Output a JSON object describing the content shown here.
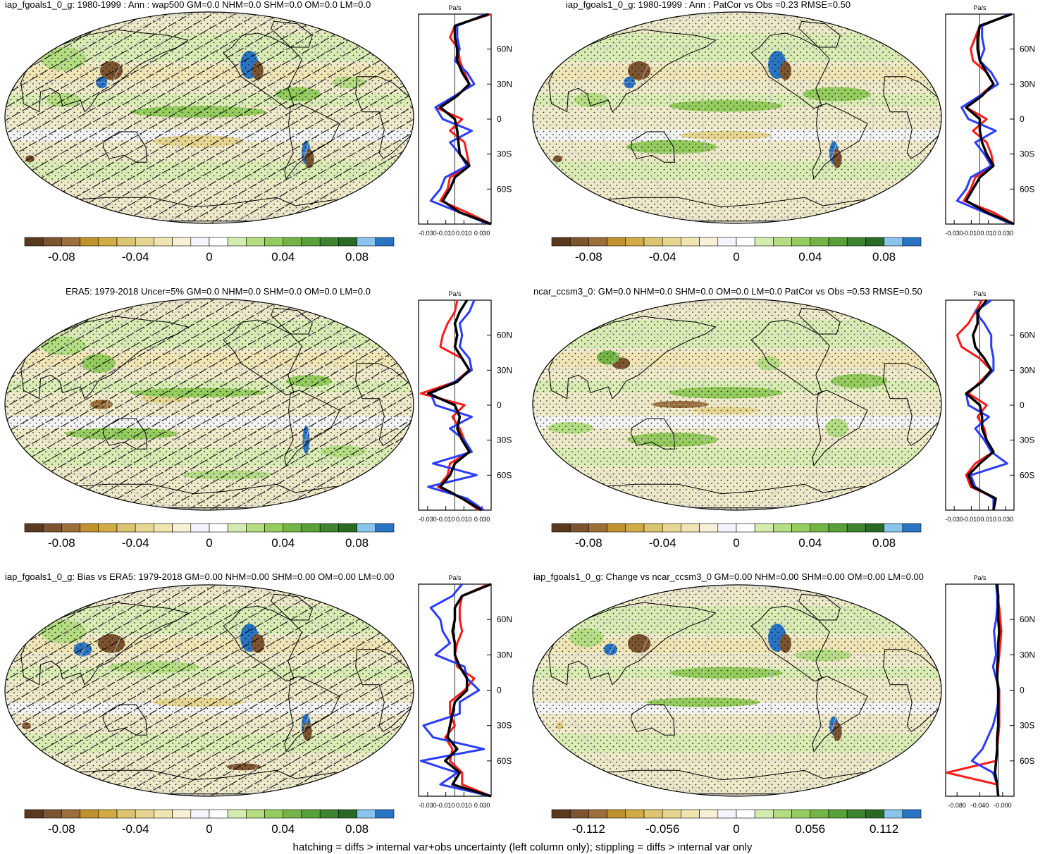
{
  "colors": {
    "palette": [
      "#5a3a1e",
      "#7d5430",
      "#9c6e3a",
      "#c0922e",
      "#d2ab45",
      "#dcc470",
      "#e7d691",
      "#efe4b2",
      "#f6f0d6",
      "#f4f4fc",
      "#ffffff",
      "#d5ecb0",
      "#b4dd82",
      "#94cc5e",
      "#74b446",
      "#58a038",
      "#3e8430",
      "#2a6a26",
      "#88c4ec",
      "#2a74c4"
    ],
    "ocean_tint": "#ffffff",
    "coast": "#000000",
    "zonal_model": "#2a3cff",
    "zonal_obs": "#ff1a1a",
    "zonal_mean": "#000000"
  },
  "footer": "hatching = diffs > internal var+obs uncertainty (left column only); stippling = diffs > internal var only",
  "panels": [
    {
      "title": "iap_fgoals1_0_g: 1980-1999 : Ann : wap500 GM=0.0 NHM=0.0 SHM=0.0 OM=0.0 LM=0.0",
      "colorbar_ticks": [
        "-0.08",
        "-0.04",
        "0",
        "0.04",
        "0.08"
      ],
      "zonal_unit": "Pa/s",
      "zonal_lat_labels": [
        "60N",
        "30N",
        "0",
        "30S",
        "60S"
      ],
      "zonal_x_labels": [
        "-0.030",
        "-0.010",
        "0.010",
        "0.030"
      ],
      "hatched": true
    },
    {
      "title": "iap_fgoals1_0_g: 1980-1999 : Ann : PatCor vs Obs =0.23 RMSE=0.50",
      "colorbar_ticks": [
        "-0.08",
        "-0.04",
        "0",
        "0.04",
        "0.08"
      ],
      "zonal_unit": "Pa/s",
      "zonal_lat_labels": [
        "60N",
        "30N",
        "0",
        "30S",
        "60S"
      ],
      "zonal_x_labels": [
        "-0.030",
        "-0.010",
        "0.010",
        "0.030"
      ],
      "hatched": false
    },
    {
      "title": "ERA5: 1979-2018 Uncer=5% GM=0.0 NHM=0.0 SHM=0.0 OM=0.0 LM=0.0",
      "colorbar_ticks": [
        "-0.08",
        "-0.04",
        "0",
        "0.04",
        "0.08"
      ],
      "zonal_unit": "Pa/s",
      "zonal_lat_labels": [
        "60N",
        "30N",
        "0",
        "30S",
        "60S"
      ],
      "zonal_x_labels": [
        "-0.030",
        "-0.010",
        "0.010",
        "0.030"
      ],
      "hatched": true
    },
    {
      "title": "ncar_ccsm3_0: GM=0.0 NHM=0.0 SHM=0.0 OM=0.0 LM=0.0 PatCor vs Obs =0.53 RMSE=0.50",
      "colorbar_ticks": [
        "-0.08",
        "-0.04",
        "0",
        "0.04",
        "0.08"
      ],
      "zonal_unit": "Pa/s",
      "zonal_lat_labels": [
        "60N",
        "30N",
        "0",
        "30S",
        "60S"
      ],
      "zonal_x_labels": [
        "-0.030",
        "-0.010",
        "0.010",
        "0.030"
      ],
      "hatched": false
    },
    {
      "title": "iap_fgoals1_0_g: Bias vs ERA5: 1979-2018 GM=0.00 NHM=0.00 SHM=0.00 OM=0.00 LM=0.00",
      "colorbar_ticks": [
        "-0.08",
        "-0.04",
        "0",
        "0.04",
        "0.08"
      ],
      "zonal_unit": "Pa/s",
      "zonal_lat_labels": [
        "60N",
        "30N",
        "0",
        "30S",
        "60S"
      ],
      "zonal_x_labels": [
        "-0.030",
        "-0.010",
        "0.010",
        "0.030"
      ],
      "hatched": true
    },
    {
      "title": "iap_fgoals1_0_g: Change vs ncar_ccsm3_0 GM=0.00 NHM=0.00 SHM=0.00 OM=0.00 LM=0.00",
      "colorbar_ticks": [
        "-0.112",
        "-0.056",
        "0",
        "0.056",
        "0.112"
      ],
      "zonal_unit": "Pa/s",
      "zonal_lat_labels": [
        "60N",
        "30N",
        "0",
        "30S",
        "60S"
      ],
      "zonal_x_labels": [
        "-0.080",
        "-0.040",
        "-0.000"
      ],
      "hatched": false
    }
  ],
  "chart_data": [
    {
      "type": "heatmap",
      "title": "iap_fgoals1_0_g: 1980-1999 : Ann : wap500 GM=0.0 NHM=0.0 SHM=0.0 OM=0.0 LM=0.0",
      "colorbar": {
        "ticks": [
          -0.08,
          -0.04,
          0,
          0.04,
          0.08
        ],
        "range": [
          -0.1,
          0.1
        ],
        "levels": 20
      },
      "zonal_mean": {
        "unit": "Pa/s",
        "xlim": [
          -0.03,
          0.03
        ],
        "ylim": [
          -90,
          90
        ],
        "lat": [
          -90,
          -80,
          -70,
          -60,
          -50,
          -40,
          -30,
          -20,
          -10,
          0,
          10,
          20,
          30,
          40,
          50,
          60,
          70,
          80,
          90
        ],
        "series": [
          {
            "values": [
              0.03,
              0.01,
              -0.012,
              -0.006,
              -0.004,
              0.012,
              0.01,
              0.008,
              -0.004,
              0.006,
              -0.016,
              0.002,
              0.012,
              0.008,
              0.004,
              0.003,
              -0.004,
              0.0,
              0.03
            ]
          },
          {
            "values": [
              0.028,
              0.004,
              -0.02,
              -0.012,
              -0.008,
              0.01,
              0.004,
              -0.004,
              0.014,
              -0.01,
              -0.016,
              0.0,
              0.016,
              0.01,
              0.0,
              0.004,
              0.002,
              0.002,
              0.026
            ]
          },
          {
            "values": [
              0.03,
              0.004,
              -0.01,
              -0.004,
              0.0,
              0.012,
              0.004,
              0.003,
              0.002,
              0.0,
              -0.012,
              0.002,
              0.012,
              0.006,
              0.002,
              0.002,
              0.0,
              0.0,
              0.028
            ]
          }
        ]
      }
    },
    {
      "type": "heatmap",
      "title": "iap_fgoals1_0_g: 1980-1999 : Ann : PatCor vs Obs =0.23 RMSE=0.50",
      "colorbar": {
        "ticks": [
          -0.08,
          -0.04,
          0,
          0.04,
          0.08
        ],
        "range": [
          -0.1,
          0.1
        ],
        "levels": 20
      },
      "zonal_mean": {
        "unit": "Pa/s",
        "xlim": [
          -0.03,
          0.03
        ],
        "ylim": [
          -90,
          90
        ],
        "lat": [
          -90,
          -80,
          -70,
          -60,
          -50,
          -40,
          -30,
          -20,
          -10,
          0,
          10,
          20,
          30,
          40,
          50,
          60,
          70,
          80,
          90
        ],
        "series": [
          {
            "values": [
              0.03,
              0.012,
              -0.014,
              -0.008,
              -0.004,
              0.012,
              0.01,
              0.006,
              -0.006,
              0.006,
              -0.012,
              0.0,
              0.012,
              0.006,
              -0.006,
              -0.008,
              -0.004,
              0.0,
              0.028
            ]
          },
          {
            "values": [
              0.028,
              0.004,
              -0.02,
              -0.012,
              -0.008,
              0.01,
              0.004,
              -0.004,
              0.014,
              -0.01,
              -0.016,
              0.0,
              0.016,
              0.01,
              0.0,
              0.004,
              0.002,
              0.002,
              0.026
            ]
          },
          {
            "values": [
              0.03,
              0.006,
              -0.012,
              -0.006,
              0.0,
              0.012,
              0.006,
              0.002,
              0.0,
              0.0,
              -0.012,
              0.002,
              0.012,
              0.006,
              0.0,
              -0.002,
              -0.002,
              0.0,
              0.028
            ]
          }
        ]
      }
    },
    {
      "type": "heatmap",
      "title": "ERA5: 1979-2018 Uncer=5% GM=0.0 NHM=0.0 SHM=0.0 OM=0.0 LM=0.0",
      "colorbar": {
        "ticks": [
          -0.08,
          -0.04,
          0,
          0.04,
          0.08
        ],
        "range": [
          -0.1,
          0.1
        ],
        "levels": 20
      },
      "zonal_mean": {
        "unit": "Pa/s",
        "xlim": [
          -0.03,
          0.03
        ],
        "ylim": [
          -90,
          90
        ],
        "lat": [
          -90,
          -80,
          -70,
          -60,
          -50,
          -40,
          -30,
          -20,
          -10,
          0,
          10,
          20,
          30,
          40,
          50,
          60,
          70,
          80,
          90
        ],
        "series": [
          {
            "values": [
              0.02,
              0.006,
              -0.014,
              -0.006,
              -0.004,
              0.012,
              0.008,
              0.004,
              -0.002,
              0.008,
              -0.028,
              0.0,
              0.012,
              0.006,
              -0.012,
              -0.01,
              -0.006,
              0.0,
              0.002
            ]
          },
          {
            "values": [
              0.024,
              0.01,
              -0.022,
              0.018,
              -0.018,
              0.014,
              0.008,
              -0.004,
              0.014,
              -0.016,
              -0.02,
              0.0,
              0.014,
              0.012,
              0.004,
              0.006,
              0.004,
              0.012,
              0.016
            ]
          },
          {
            "values": [
              0.022,
              0.006,
              -0.012,
              -0.004,
              0.0,
              0.012,
              0.006,
              0.002,
              0.004,
              0.0,
              -0.022,
              0.002,
              0.012,
              0.006,
              0.0,
              0.002,
              0.0,
              0.004,
              0.01
            ]
          }
        ]
      }
    },
    {
      "type": "heatmap",
      "title": "ncar_ccsm3_0: GM=0.0 NHM=0.0 SHM=0.0 OM=0.0 LM=0.0 PatCor vs Obs =0.53 RMSE=0.50",
      "colorbar": {
        "ticks": [
          -0.08,
          -0.04,
          0,
          0.04,
          0.08
        ],
        "range": [
          -0.1,
          0.1
        ],
        "levels": 20
      },
      "zonal_mean": {
        "unit": "Pa/s",
        "xlim": [
          -0.03,
          0.03
        ],
        "ylim": [
          -90,
          90
        ],
        "lat": [
          -90,
          -80,
          -70,
          -60,
          -50,
          -40,
          -30,
          -20,
          -10,
          0,
          10,
          20,
          30,
          40,
          50,
          60,
          70,
          80,
          90
        ],
        "series": [
          {
            "values": [
              0.012,
              0.014,
              -0.008,
              -0.012,
              -0.004,
              0.012,
              0.006,
              0.004,
              -0.002,
              0.006,
              -0.01,
              0.0,
              0.01,
              0.0,
              -0.016,
              -0.02,
              -0.01,
              -0.004,
              0.002
            ]
          },
          {
            "values": [
              0.012,
              0.012,
              -0.004,
              -0.008,
              0.024,
              0.01,
              0.004,
              -0.004,
              0.008,
              -0.01,
              -0.012,
              0.002,
              0.012,
              0.012,
              0.01,
              0.01,
              0.004,
              -0.004,
              0.01
            ]
          },
          {
            "values": [
              0.012,
              0.014,
              -0.006,
              -0.01,
              0.0,
              0.012,
              0.006,
              0.002,
              0.002,
              0.0,
              -0.012,
              0.002,
              0.01,
              0.004,
              -0.004,
              -0.006,
              -0.002,
              -0.002,
              0.006
            ]
          }
        ]
      }
    },
    {
      "type": "heatmap",
      "title": "iap_fgoals1_0_g: Bias vs ERA5: 1979-2018 GM=0.00 NHM=0.00 SHM=0.00 OM=0.00 LM=0.00",
      "colorbar": {
        "ticks": [
          -0.08,
          -0.04,
          0,
          0.04,
          0.08
        ],
        "range": [
          -0.1,
          0.1
        ],
        "levels": 20
      },
      "zonal_mean": {
        "unit": "Pa/s",
        "xlim": [
          -0.03,
          0.03
        ],
        "ylim": [
          -90,
          90
        ],
        "lat": [
          -90,
          -80,
          -70,
          -60,
          -50,
          -40,
          -30,
          -20,
          -10,
          0,
          10,
          20,
          30,
          40,
          50,
          60,
          70,
          80,
          90
        ],
        "series": [
          {
            "values": [
              0.03,
              0.006,
              0.006,
              -0.004,
              -0.002,
              -0.008,
              0.0,
              -0.004,
              -0.004,
              0.008,
              0.016,
              0.002,
              0.0,
              0.002,
              0.006,
              0.004,
              0.004,
              0.006,
              0.028
            ]
          },
          {
            "values": [
              0.03,
              -0.012,
              0.002,
              -0.028,
              0.024,
              -0.018,
              -0.026,
              0.004,
              0.004,
              0.02,
              0.01,
              0.008,
              -0.016,
              -0.004,
              -0.01,
              -0.012,
              -0.02,
              -0.002,
              0.006
            ]
          },
          {
            "values": [
              0.03,
              -0.002,
              0.004,
              -0.008,
              0.002,
              -0.006,
              -0.004,
              -0.002,
              0.0,
              0.01,
              0.01,
              0.004,
              0.0,
              0.0,
              -0.002,
              0.0,
              0.0,
              0.006,
              0.03
            ]
          }
        ]
      }
    },
    {
      "type": "heatmap",
      "title": "iap_fgoals1_0_g: Change vs ncar_ccsm3_0 GM=0.00 NHM=0.00 SHM=0.00 OM=0.00 LM=0.00",
      "colorbar": {
        "ticks": [
          -0.112,
          -0.056,
          0,
          0.056,
          0.112
        ],
        "range": [
          -0.14,
          0.14
        ],
        "levels": 20
      },
      "zonal_mean": {
        "unit": "Pa/s",
        "xlim": [
          -0.1,
          0.03
        ],
        "ylim": [
          -90,
          90
        ],
        "lat": [
          -90,
          -80,
          -70,
          -60,
          -50,
          -40,
          -30,
          -20,
          -10,
          0,
          10,
          20,
          30,
          40,
          50,
          60,
          70,
          80,
          90
        ],
        "series": [
          {
            "values": [
              0.0,
              -0.002,
              -0.098,
              -0.004,
              -0.002,
              0.0,
              0.002,
              0.002,
              0.002,
              0.002,
              -0.002,
              0.0,
              0.002,
              0.004,
              0.006,
              0.004,
              0.002,
              -0.002,
              -0.002
            ]
          },
          {
            "values": [
              0.0,
              -0.002,
              -0.01,
              -0.05,
              -0.03,
              -0.02,
              -0.01,
              -0.004,
              0.0,
              0.002,
              -0.004,
              -0.01,
              -0.004,
              -0.006,
              -0.008,
              -0.004,
              -0.002,
              -0.002,
              -0.004
            ]
          },
          {
            "values": [
              0.0,
              -0.002,
              -0.006,
              -0.004,
              -0.002,
              -0.002,
              0.0,
              0.0,
              0.0,
              0.0,
              -0.002,
              -0.002,
              0.0,
              0.0,
              0.002,
              0.0,
              0.0,
              0.0,
              -0.002
            ]
          }
        ]
      }
    }
  ]
}
